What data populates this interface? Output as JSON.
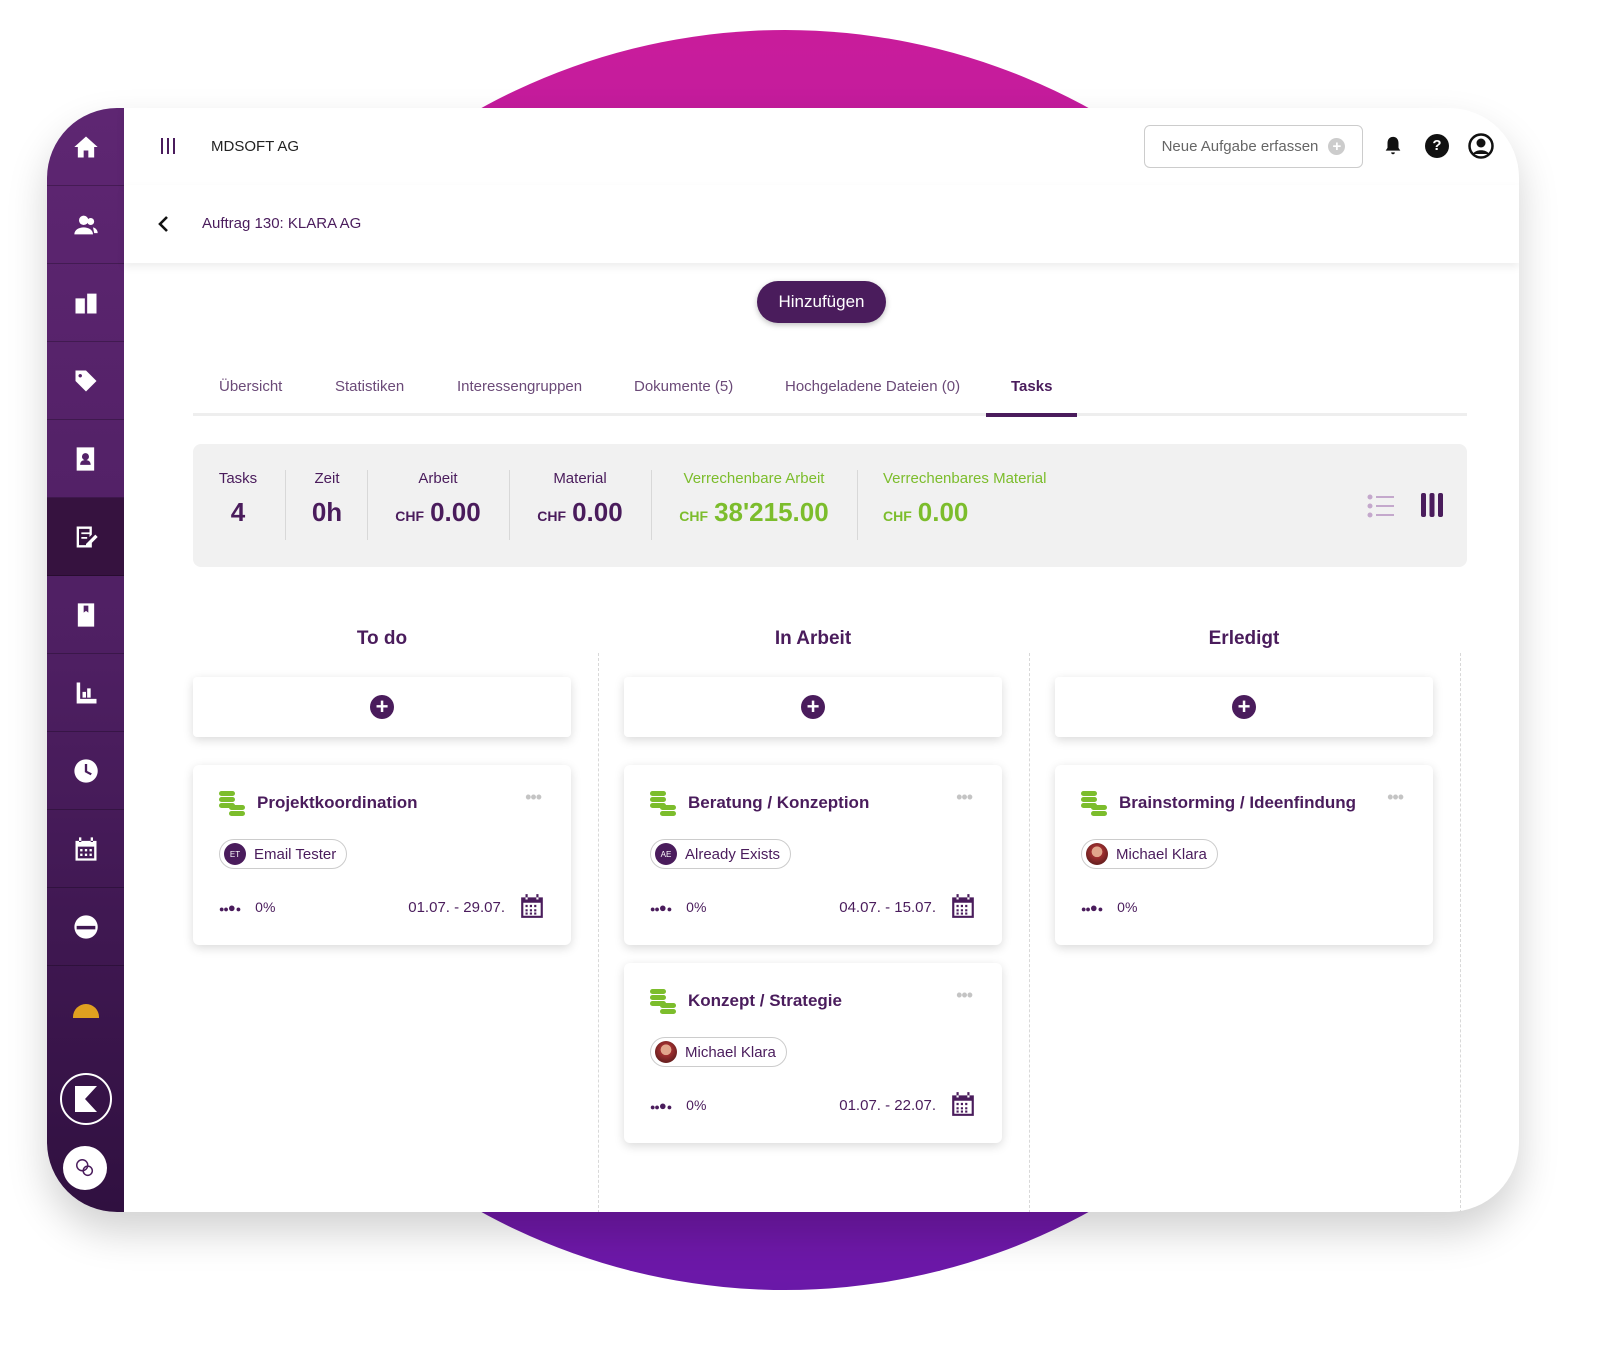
{
  "header": {
    "company": "MDSOFT AG",
    "new_task_label": "Neue Aufgabe erfassen"
  },
  "breadcrumb": {
    "title": "Auftrag 130: KLARA AG"
  },
  "add_button": "Hinzufügen",
  "tabs": [
    {
      "label": "Übersicht"
    },
    {
      "label": "Statistiken"
    },
    {
      "label": "Interessengruppen"
    },
    {
      "label": "Dokumente (5)"
    },
    {
      "label": "Hochgeladene Dateien (0)"
    },
    {
      "label": "Tasks",
      "active": true
    }
  ],
  "stats": {
    "tasks": {
      "label": "Tasks",
      "value": "4"
    },
    "zeit": {
      "label": "Zeit",
      "value": "0h"
    },
    "arbeit": {
      "label": "Arbeit",
      "currency": "CHF",
      "value": "0.00"
    },
    "material": {
      "label": "Material",
      "currency": "CHF",
      "value": "0.00"
    },
    "verr_arbeit": {
      "label": "Verrechenbare Arbeit",
      "currency": "CHF",
      "value": "38'215.00"
    },
    "verr_material": {
      "label": "Verrechenbares Material",
      "currency": "CHF",
      "value": "0.00"
    }
  },
  "view": {
    "active": "board"
  },
  "columns": [
    {
      "title": "To do",
      "cards": [
        {
          "title": "Projektkoordination",
          "initials": "ET",
          "assignee": "Email Tester",
          "progress": "0%",
          "dates": "01.07. - 29.07."
        }
      ]
    },
    {
      "title": "In Arbeit",
      "cards": [
        {
          "title": "Beratung / Konzeption",
          "initials": "AE",
          "assignee": "Already Exists",
          "progress": "0%",
          "dates": "04.07. - 15.07."
        },
        {
          "title": "Konzept / Strategie",
          "assignee": "Michael Klara",
          "progress": "0%",
          "dates": "01.07. - 22.07."
        }
      ]
    },
    {
      "title": "Erledigt",
      "cards": [
        {
          "title": "Brainstorming / Ideenfindung",
          "assignee": "Michael Klara",
          "progress": "0%"
        }
      ]
    }
  ],
  "colors": {
    "primary": "#4a1c5c",
    "accent_green": "#7cbd2c",
    "sidebar": "#5e2672"
  }
}
